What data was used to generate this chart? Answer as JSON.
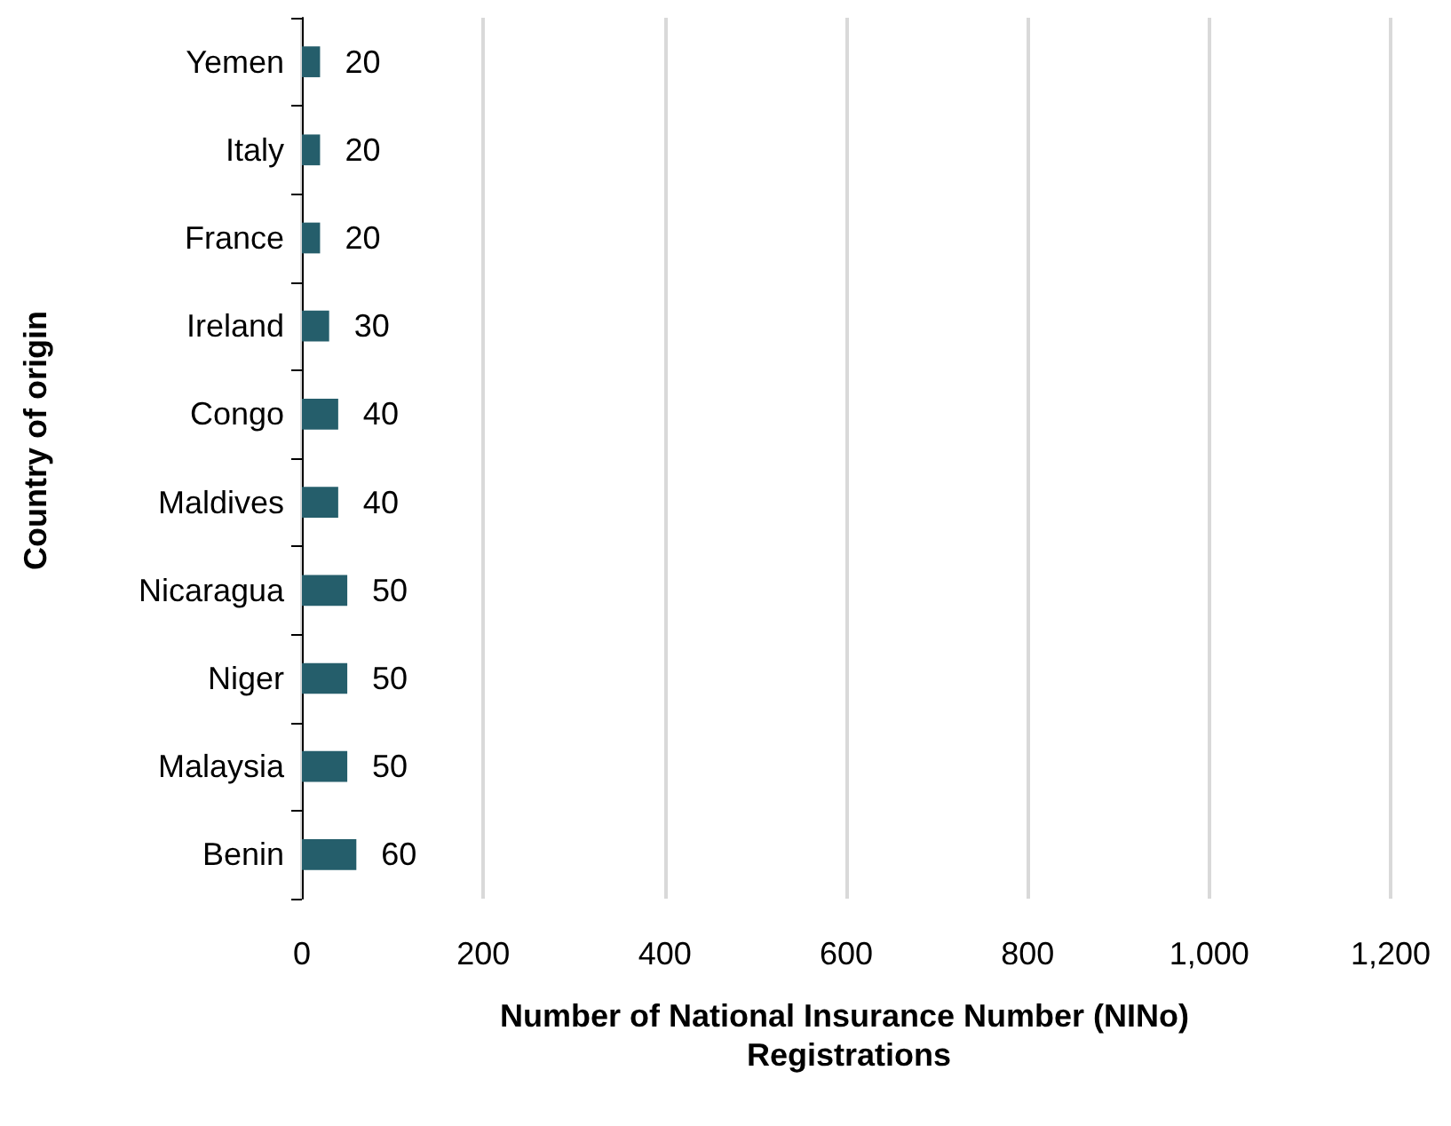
{
  "chart_data": {
    "type": "bar",
    "orientation": "horizontal",
    "ylabel": "Country of origin",
    "xlabel": "Number of National Insurance Number (NINo) Registrations",
    "categories": [
      "Yemen",
      "Italy",
      "France",
      "Ireland",
      "Congo",
      "Maldives",
      "Nicaragua",
      "Niger",
      "Malaysia",
      "Benin"
    ],
    "values": [
      20,
      20,
      20,
      30,
      40,
      40,
      50,
      50,
      50,
      60
    ],
    "color": "#255e6b",
    "xlim": [
      0,
      1200
    ],
    "xticks": [
      0,
      200,
      400,
      600,
      800,
      {
        "value": 1000,
        "label": "1,000"
      },
      {
        "value": 1200,
        "label": "1,200"
      }
    ],
    "grid": "x",
    "data_labels": true
  }
}
